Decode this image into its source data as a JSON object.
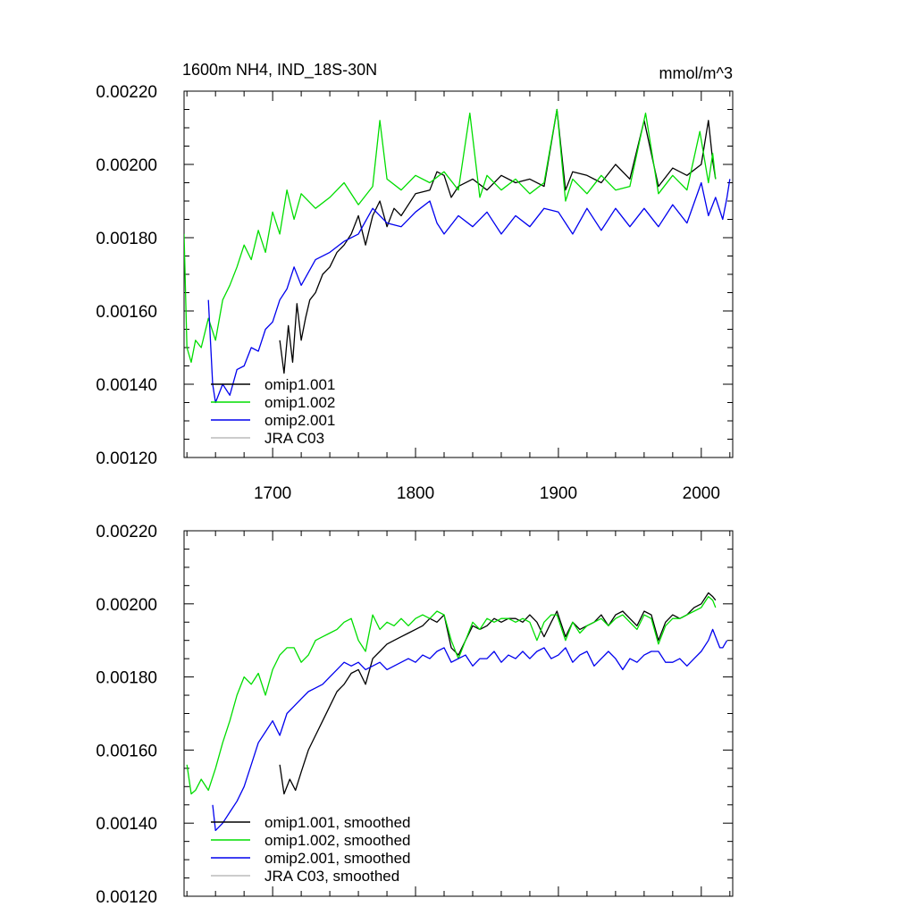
{
  "chart_data": [
    {
      "type": "line",
      "title_left": "1600m NH4, IND_18S-30N",
      "title_right": "mmol/m^3",
      "xlabel": "",
      "ylabel": "",
      "xlim": [
        1638,
        2022
      ],
      "ylim": [
        0.0012,
        0.0022
      ],
      "x_ticks": [
        1700,
        1800,
        1900,
        2000
      ],
      "x_tick_labels": [
        "1700",
        "1800",
        "1900",
        "2000"
      ],
      "y_ticks": [
        0.0012,
        0.0014,
        0.0016,
        0.0018,
        0.002,
        0.0022
      ],
      "y_tick_labels": [
        "0.00120",
        "0.00140",
        "0.00160",
        "0.00180",
        "0.00200",
        "0.00220"
      ],
      "grid": false,
      "legend_position": "bottom-left",
      "series": [
        {
          "name": "omip1.001",
          "color": "#000000",
          "x": [
            1705,
            1708,
            1711,
            1714,
            1717,
            1720,
            1723,
            1726,
            1730,
            1735,
            1740,
            1745,
            1750,
            1755,
            1760,
            1765,
            1770,
            1775,
            1780,
            1785,
            1790,
            1800,
            1810,
            1815,
            1820,
            1825,
            1830,
            1840,
            1850,
            1860,
            1870,
            1880,
            1890,
            1899,
            1905,
            1910,
            1920,
            1930,
            1940,
            1950,
            1960,
            1970,
            1980,
            1990,
            2000,
            2005,
            2008,
            2010
          ],
          "y": [
            0.00152,
            0.00143,
            0.00156,
            0.00146,
            0.00162,
            0.00152,
            0.00158,
            0.00163,
            0.00165,
            0.0017,
            0.00172,
            0.00176,
            0.00178,
            0.00181,
            0.00186,
            0.00178,
            0.00186,
            0.0019,
            0.00183,
            0.00188,
            0.00186,
            0.00192,
            0.00193,
            0.00198,
            0.00197,
            0.00191,
            0.00194,
            0.00196,
            0.00193,
            0.00197,
            0.00195,
            0.00196,
            0.00194,
            0.00215,
            0.00193,
            0.00198,
            0.00197,
            0.00195,
            0.002,
            0.00196,
            0.00212,
            0.00194,
            0.00199,
            0.00197,
            0.002,
            0.00212,
            0.00201,
            0.00196
          ]
        },
        {
          "name": "omip1.002",
          "color": "#00dd00",
          "x": [
            1638,
            1640,
            1643,
            1646,
            1650,
            1655,
            1660,
            1665,
            1670,
            1675,
            1680,
            1685,
            1690,
            1695,
            1700,
            1705,
            1710,
            1715,
            1720,
            1730,
            1740,
            1750,
            1760,
            1770,
            1775,
            1780,
            1790,
            1800,
            1810,
            1820,
            1830,
            1838,
            1845,
            1850,
            1860,
            1870,
            1880,
            1890,
            1899,
            1905,
            1910,
            1920,
            1930,
            1940,
            1950,
            1961,
            1970,
            1980,
            1990,
            1999,
            2005,
            2008,
            2010
          ],
          "y": [
            0.00181,
            0.0015,
            0.00146,
            0.00152,
            0.0015,
            0.00158,
            0.00152,
            0.00163,
            0.00167,
            0.00172,
            0.00178,
            0.00174,
            0.00182,
            0.00176,
            0.00187,
            0.00181,
            0.00193,
            0.00185,
            0.00192,
            0.00188,
            0.00191,
            0.00195,
            0.00189,
            0.00194,
            0.00212,
            0.00196,
            0.00193,
            0.00197,
            0.00195,
            0.00198,
            0.00193,
            0.00214,
            0.00191,
            0.00197,
            0.00193,
            0.00196,
            0.00192,
            0.00195,
            0.00215,
            0.0019,
            0.00196,
            0.00192,
            0.00197,
            0.00193,
            0.00194,
            0.00214,
            0.00192,
            0.00197,
            0.00193,
            0.00209,
            0.00195,
            0.00203,
            0.00196
          ]
        },
        {
          "name": "omip2.001",
          "color": "#0000ee",
          "x": [
            1655,
            1658,
            1660,
            1665,
            1670,
            1675,
            1680,
            1685,
            1690,
            1695,
            1700,
            1705,
            1710,
            1715,
            1720,
            1730,
            1740,
            1750,
            1760,
            1770,
            1780,
            1790,
            1800,
            1810,
            1815,
            1820,
            1830,
            1840,
            1850,
            1860,
            1870,
            1880,
            1890,
            1900,
            1910,
            1920,
            1930,
            1940,
            1950,
            1960,
            1970,
            1980,
            1990,
            2000,
            2005,
            2010,
            2015,
            2018,
            2020
          ],
          "y": [
            0.00163,
            0.0014,
            0.00135,
            0.0014,
            0.00137,
            0.00144,
            0.00145,
            0.0015,
            0.00149,
            0.00155,
            0.00157,
            0.00163,
            0.00166,
            0.00172,
            0.00167,
            0.00174,
            0.00176,
            0.00179,
            0.00181,
            0.00188,
            0.00184,
            0.00183,
            0.00187,
            0.0019,
            0.00184,
            0.00181,
            0.00186,
            0.00183,
            0.00187,
            0.00181,
            0.00186,
            0.00183,
            0.00188,
            0.00187,
            0.00181,
            0.00188,
            0.00182,
            0.00188,
            0.00183,
            0.00188,
            0.00183,
            0.00189,
            0.00184,
            0.00195,
            0.00186,
            0.00191,
            0.00185,
            0.00191,
            0.00196
          ]
        },
        {
          "name": "JRA C03",
          "color": "#bbbbbb",
          "x": [],
          "y": []
        }
      ]
    },
    {
      "type": "line",
      "xlabel": "",
      "ylabel": "",
      "xlim": [
        1638,
        2022
      ],
      "ylim": [
        0.0012,
        0.0022
      ],
      "x_ticks": [
        1700,
        1800,
        1900,
        2000
      ],
      "y_ticks": [
        0.0012,
        0.0014,
        0.0016,
        0.0018,
        0.002,
        0.0022
      ],
      "y_tick_labels": [
        "0.00120",
        "0.00140",
        "0.00160",
        "0.00180",
        "0.00200",
        "0.00220"
      ],
      "grid": false,
      "legend_position": "bottom-left",
      "series": [
        {
          "name": "omip1.001, smoothed",
          "color": "#000000",
          "x": [
            1705,
            1708,
            1712,
            1716,
            1720,
            1725,
            1730,
            1735,
            1740,
            1745,
            1750,
            1755,
            1760,
            1765,
            1770,
            1775,
            1780,
            1785,
            1790,
            1795,
            1800,
            1805,
            1810,
            1815,
            1820,
            1825,
            1830,
            1835,
            1840,
            1845,
            1850,
            1855,
            1860,
            1865,
            1870,
            1875,
            1880,
            1885,
            1890,
            1895,
            1899,
            1905,
            1910,
            1915,
            1920,
            1925,
            1930,
            1935,
            1940,
            1945,
            1950,
            1955,
            1960,
            1965,
            1970,
            1975,
            1980,
            1985,
            1990,
            1995,
            2000,
            2005,
            2008,
            2010
          ],
          "y": [
            0.00156,
            0.00148,
            0.00152,
            0.00149,
            0.00154,
            0.0016,
            0.00164,
            0.00168,
            0.00172,
            0.00176,
            0.00178,
            0.00181,
            0.00182,
            0.00178,
            0.00185,
            0.00187,
            0.00189,
            0.0019,
            0.00191,
            0.00192,
            0.00193,
            0.00194,
            0.00196,
            0.00195,
            0.00197,
            0.00188,
            0.00186,
            0.0019,
            0.00194,
            0.00193,
            0.00194,
            0.00196,
            0.00195,
            0.00196,
            0.00196,
            0.00195,
            0.00197,
            0.00195,
            0.00191,
            0.00195,
            0.00198,
            0.00191,
            0.00195,
            0.00193,
            0.00194,
            0.00195,
            0.00197,
            0.00194,
            0.00197,
            0.00198,
            0.00196,
            0.00194,
            0.00198,
            0.00197,
            0.0019,
            0.00195,
            0.00197,
            0.00196,
            0.00197,
            0.00199,
            0.002,
            0.00203,
            0.00202,
            0.00201
          ]
        },
        {
          "name": "omip1.002, smoothed",
          "color": "#00dd00",
          "x": [
            1640,
            1643,
            1646,
            1650,
            1655,
            1660,
            1665,
            1670,
            1675,
            1680,
            1685,
            1690,
            1695,
            1700,
            1705,
            1710,
            1715,
            1720,
            1725,
            1730,
            1735,
            1740,
            1745,
            1750,
            1755,
            1760,
            1765,
            1770,
            1775,
            1780,
            1785,
            1790,
            1795,
            1800,
            1805,
            1810,
            1815,
            1820,
            1825,
            1830,
            1835,
            1840,
            1845,
            1850,
            1855,
            1860,
            1865,
            1870,
            1875,
            1880,
            1885,
            1890,
            1895,
            1899,
            1905,
            1910,
            1915,
            1920,
            1925,
            1930,
            1935,
            1940,
            1945,
            1950,
            1955,
            1960,
            1965,
            1970,
            1975,
            1980,
            1985,
            1990,
            1995,
            2000,
            2005,
            2008,
            2010
          ],
          "y": [
            0.00156,
            0.00148,
            0.00149,
            0.00152,
            0.00149,
            0.00155,
            0.00162,
            0.00168,
            0.00175,
            0.0018,
            0.00178,
            0.00181,
            0.00175,
            0.00182,
            0.00186,
            0.00188,
            0.00188,
            0.00184,
            0.00186,
            0.0019,
            0.00191,
            0.00192,
            0.00193,
            0.00195,
            0.00196,
            0.0019,
            0.00187,
            0.00197,
            0.00193,
            0.00195,
            0.00194,
            0.00196,
            0.00194,
            0.00196,
            0.00197,
            0.00196,
            0.00198,
            0.00197,
            0.0019,
            0.00185,
            0.0019,
            0.00195,
            0.00193,
            0.00196,
            0.00195,
            0.00196,
            0.00196,
            0.00195,
            0.00196,
            0.00195,
            0.0019,
            0.00195,
            0.00197,
            0.00197,
            0.0019,
            0.00195,
            0.00192,
            0.00194,
            0.00195,
            0.00196,
            0.00194,
            0.00196,
            0.00197,
            0.00195,
            0.00193,
            0.00197,
            0.00196,
            0.00189,
            0.00194,
            0.00196,
            0.00196,
            0.00197,
            0.00198,
            0.00199,
            0.00202,
            0.00201,
            0.00199
          ]
        },
        {
          "name": "omip2.001, smoothed",
          "color": "#0000ee",
          "x": [
            1658,
            1660,
            1665,
            1670,
            1675,
            1680,
            1685,
            1690,
            1695,
            1700,
            1705,
            1710,
            1715,
            1720,
            1725,
            1730,
            1735,
            1740,
            1745,
            1750,
            1755,
            1760,
            1765,
            1770,
            1775,
            1780,
            1785,
            1790,
            1795,
            1800,
            1805,
            1810,
            1815,
            1820,
            1825,
            1830,
            1835,
            1840,
            1845,
            1850,
            1855,
            1860,
            1865,
            1870,
            1875,
            1880,
            1885,
            1890,
            1895,
            1900,
            1905,
            1910,
            1915,
            1920,
            1925,
            1930,
            1935,
            1940,
            1945,
            1950,
            1955,
            1960,
            1965,
            1970,
            1975,
            1980,
            1985,
            1990,
            1995,
            2000,
            2005,
            2008,
            2010,
            2013,
            2015,
            2018
          ],
          "y": [
            0.00145,
            0.00138,
            0.0014,
            0.00143,
            0.00146,
            0.0015,
            0.00156,
            0.00162,
            0.00165,
            0.00168,
            0.00164,
            0.0017,
            0.00172,
            0.00174,
            0.00176,
            0.00177,
            0.00178,
            0.0018,
            0.00182,
            0.00184,
            0.00183,
            0.00184,
            0.00182,
            0.00183,
            0.00184,
            0.00182,
            0.00183,
            0.00184,
            0.00185,
            0.00184,
            0.00186,
            0.00185,
            0.00187,
            0.00188,
            0.00184,
            0.00185,
            0.00186,
            0.00183,
            0.00185,
            0.00185,
            0.00187,
            0.00184,
            0.00186,
            0.00185,
            0.00187,
            0.00185,
            0.00187,
            0.00188,
            0.00185,
            0.00186,
            0.00188,
            0.00184,
            0.00186,
            0.00187,
            0.00183,
            0.00185,
            0.00187,
            0.00185,
            0.00182,
            0.00185,
            0.00184,
            0.00186,
            0.00187,
            0.00187,
            0.00184,
            0.00184,
            0.00185,
            0.00183,
            0.00185,
            0.00187,
            0.0019,
            0.00193,
            0.00191,
            0.00188,
            0.00188,
            0.0019
          ]
        },
        {
          "name": "JRA C03, smoothed",
          "color": "#bbbbbb",
          "x": [],
          "y": []
        }
      ]
    }
  ]
}
